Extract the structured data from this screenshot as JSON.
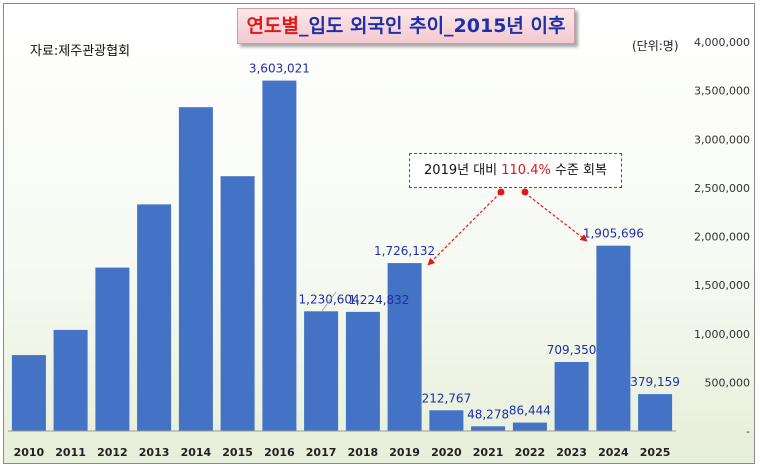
{
  "title": {
    "part1": "연도별",
    "part2": "_입도 외국인 추이_2015년 이후"
  },
  "source": "자료:제주관광협회",
  "unit": "(단위:명)",
  "callout": {
    "prefix": "2019년 대비 ",
    "highlight": "110.4%",
    "suffix": " 수준 회복"
  },
  "colors": {
    "bar": "#4472c4",
    "label": "#1f2fa8",
    "accent": "#e01818"
  },
  "chart_data": {
    "type": "bar",
    "categories": [
      "2010",
      "2011",
      "2012",
      "2013",
      "2014",
      "2015",
      "2016",
      "2017",
      "2018",
      "2019",
      "2020",
      "2021",
      "2022",
      "2023",
      "2024",
      "2025"
    ],
    "values": [
      780000,
      1040000,
      1680000,
      2330000,
      3330000,
      2620000,
      3603021,
      1230604,
      1224832,
      1726132,
      212767,
      48278,
      86444,
      709350,
      1905696,
      379159
    ],
    "data_labels": [
      null,
      null,
      null,
      null,
      null,
      null,
      "3,603,021",
      "1,230,604",
      "1,224,832",
      "1,726,132",
      "212,767",
      "48,278",
      "86,444",
      "709,350",
      "1,905,696",
      "379,159"
    ],
    "ylim": [
      0,
      4000000
    ],
    "yticks": [
      0,
      500000,
      1000000,
      1500000,
      2000000,
      2500000,
      3000000,
      3500000,
      4000000
    ],
    "ytick_labels": [
      "-",
      "500,000",
      "1,000,000",
      "1,500,000",
      "2,000,000",
      "2,500,000",
      "3,000,000",
      "3,500,000",
      "4,000,000"
    ],
    "y_axis_side": "right",
    "grid": false,
    "legend": "none"
  }
}
